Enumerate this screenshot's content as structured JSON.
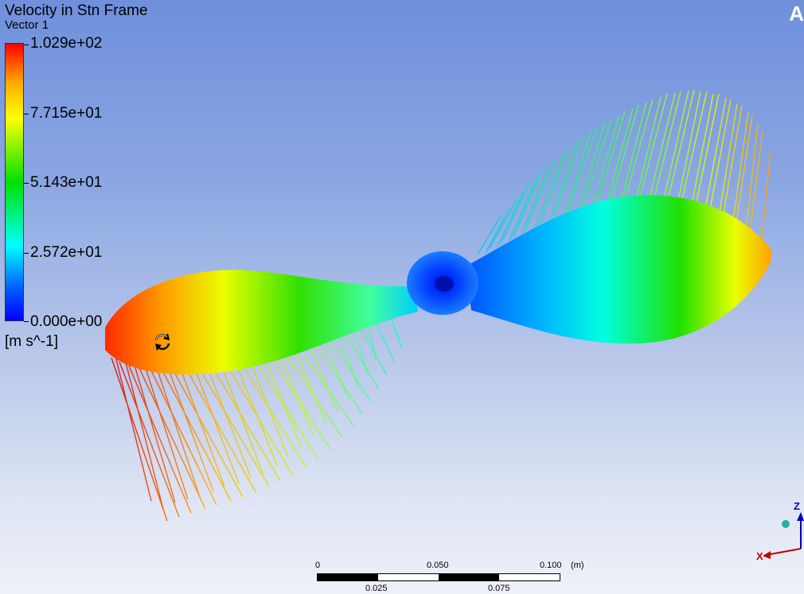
{
  "legend": {
    "title": "Velocity in Stn Frame",
    "subtitle": "Vector 1",
    "values": [
      "1.029e+02",
      "7.715e+01",
      "5.143e+01",
      "2.572e+01",
      "0.000e+00"
    ],
    "units": "[m s^-1]"
  },
  "logo_letter": "A",
  "scale": {
    "top_labels": [
      "0",
      "0.050",
      "0.100"
    ],
    "unit": "(m)",
    "bottom_labels": [
      "0.025",
      "0.075"
    ]
  },
  "triad": {
    "z": "Z",
    "x": "X"
  },
  "colors": {
    "max": "#ff0000",
    "mid": "#00e000",
    "min": "#0000ff"
  }
}
